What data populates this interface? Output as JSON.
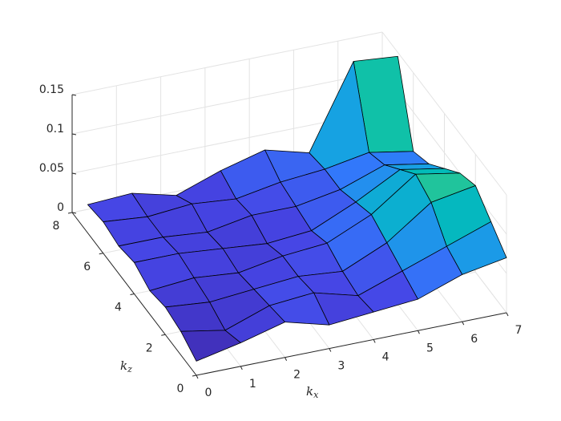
{
  "chart_data": {
    "type": "surface",
    "x_label": {
      "base": "k",
      "sub": "x"
    },
    "y_label": {
      "base": "k",
      "sub": "z"
    },
    "x": [
      0,
      1,
      2,
      3,
      4,
      5,
      6,
      7
    ],
    "y": [
      0,
      1,
      2,
      3,
      4,
      5,
      6,
      7
    ],
    "z": [
      [
        0.018,
        0.03,
        0.045,
        0.03,
        0.035,
        0.04,
        0.06,
        0.07
      ],
      [
        0.03,
        0.02,
        0.04,
        0.045,
        0.03,
        0.05,
        0.07,
        0.09
      ],
      [
        0.035,
        0.03,
        0.035,
        0.04,
        0.035,
        0.06,
        0.1,
        0.11
      ],
      [
        0.03,
        0.035,
        0.03,
        0.04,
        0.045,
        0.07,
        0.11,
        0.1
      ],
      [
        0.04,
        0.04,
        0.035,
        0.03,
        0.035,
        0.06,
        0.09,
        0.08
      ],
      [
        0.035,
        0.035,
        0.03,
        0.04,
        0.04,
        0.05,
        0.07,
        0.06
      ],
      [
        0.04,
        0.035,
        0.04,
        0.035,
        0.045,
        0.05,
        0.06,
        0.05
      ],
      [
        0.036,
        0.039,
        0.025,
        0.045,
        0.06,
        0.045,
        0.15,
        0.145
      ]
    ],
    "xlim": [
      0,
      7
    ],
    "ylim": [
      0,
      8
    ],
    "zlim": [
      0,
      0.15
    ],
    "xticks": [
      0,
      1,
      2,
      3,
      4,
      5,
      6,
      7
    ],
    "yticks": [
      0,
      2,
      4,
      6,
      8
    ],
    "zticks": [
      0,
      0.05,
      0.1,
      0.15
    ],
    "grid": true,
    "colormap": "parula"
  }
}
